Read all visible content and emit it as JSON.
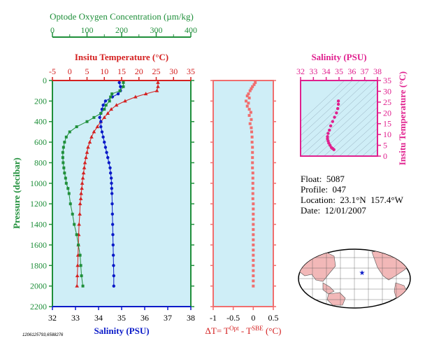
{
  "colors": {
    "oxygen": "#1f8f3a",
    "temperature": "#d42020",
    "salinity": "#0a1ac8",
    "delta": "#f06e6e",
    "ts": "#e0208e",
    "panel_bg": "#cfeef7",
    "map_land": "#f2b8b8",
    "map_ocean": "#ffffff"
  },
  "info": {
    "float_label": "Float:",
    "float_value": "5087",
    "profile_label": "Profile:",
    "profile_value": "047",
    "location_label": "Location:",
    "location_value": "23.1°N  157.4°W",
    "date_label": "Date:",
    "date_value": "12/01/2007"
  },
  "stamp": "1206125793,6588276",
  "chart_data": [
    {
      "type": "line",
      "panel": "main-profile",
      "ylabel": "Pressure (decibar)",
      "ylim": [
        2200,
        0
      ],
      "y_ticks": [
        0,
        200,
        400,
        600,
        800,
        1000,
        1200,
        1400,
        1600,
        1800,
        2000,
        2200
      ],
      "axes": {
        "oxygen": {
          "label": "Optode Oxygen Concentration (µm/kg)",
          "lim": [
            0,
            400
          ],
          "ticks": [
            0,
            100,
            200,
            300,
            400
          ]
        },
        "temperature": {
          "label": "Insitu Temperature (°C)",
          "lim": [
            -5,
            35
          ],
          "ticks": [
            -5,
            0,
            5,
            10,
            15,
            20,
            25,
            30,
            35
          ]
        },
        "salinity": {
          "label": "Salinity (PSU)",
          "lim": [
            32,
            38
          ],
          "ticks": [
            32,
            33,
            34,
            35,
            36,
            37,
            38
          ]
        }
      },
      "series": [
        {
          "key": "temperature",
          "marker": "triangle",
          "points": [
            [
              25.5,
              20
            ],
            [
              25.5,
              60
            ],
            [
              25.2,
              100
            ],
            [
              22,
              130
            ],
            [
              19,
              160
            ],
            [
              16,
              200
            ],
            [
              13.5,
              240
            ],
            [
              12,
              280
            ],
            [
              11,
              320
            ],
            [
              10,
              360
            ],
            [
              9,
              400
            ],
            [
              8,
              450
            ],
            [
              7,
              500
            ],
            [
              6.3,
              550
            ],
            [
              5.8,
              600
            ],
            [
              5.3,
              650
            ],
            [
              5,
              700
            ],
            [
              4.7,
              750
            ],
            [
              4.4,
              800
            ],
            [
              4.2,
              850
            ],
            [
              4,
              900
            ],
            [
              3.8,
              950
            ],
            [
              3.6,
              1000
            ],
            [
              3.5,
              1050
            ],
            [
              3.3,
              1100
            ],
            [
              3.2,
              1150
            ],
            [
              3,
              1200
            ],
            [
              2.9,
              1300
            ],
            [
              2.7,
              1400
            ],
            [
              2.6,
              1500
            ],
            [
              2.5,
              1600
            ],
            [
              2.4,
              1700
            ],
            [
              2.3,
              1800
            ],
            [
              2.2,
              1900
            ],
            [
              2.1,
              2000
            ]
          ]
        },
        {
          "key": "salinity",
          "marker": "circle",
          "points": [
            [
              34.9,
              20
            ],
            [
              34.95,
              60
            ],
            [
              34.95,
              100
            ],
            [
              34.85,
              130
            ],
            [
              34.6,
              160
            ],
            [
              34.3,
              200
            ],
            [
              34.2,
              240
            ],
            [
              34.15,
              280
            ],
            [
              34.1,
              320
            ],
            [
              34.05,
              360
            ],
            [
              34.1,
              400
            ],
            [
              34.1,
              450
            ],
            [
              34.15,
              500
            ],
            [
              34.2,
              550
            ],
            [
              34.25,
              600
            ],
            [
              34.3,
              650
            ],
            [
              34.35,
              700
            ],
            [
              34.4,
              750
            ],
            [
              34.45,
              800
            ],
            [
              34.5,
              850
            ],
            [
              34.52,
              900
            ],
            [
              34.55,
              950
            ],
            [
              34.56,
              1000
            ],
            [
              34.57,
              1050
            ],
            [
              34.58,
              1100
            ],
            [
              34.59,
              1200
            ],
            [
              34.6,
              1300
            ],
            [
              34.61,
              1400
            ],
            [
              34.62,
              1500
            ],
            [
              34.63,
              1600
            ],
            [
              34.64,
              1700
            ],
            [
              34.65,
              1800
            ],
            [
              34.66,
              1900
            ],
            [
              34.66,
              2000
            ]
          ]
        },
        {
          "key": "oxygen",
          "marker": "square",
          "points": [
            [
              205,
              20
            ],
            [
              205,
              60
            ],
            [
              195,
              100
            ],
            [
              172,
              130
            ],
            [
              168,
              160
            ],
            [
              165,
              200
            ],
            [
              155,
              240
            ],
            [
              150,
              280
            ],
            [
              140,
              320
            ],
            [
              120,
              360
            ],
            [
              100,
              400
            ],
            [
              70,
              450
            ],
            [
              50,
              500
            ],
            [
              40,
              550
            ],
            [
              35,
              600
            ],
            [
              32,
              650
            ],
            [
              30,
              700
            ],
            [
              30,
              750
            ],
            [
              31,
              800
            ],
            [
              33,
              850
            ],
            [
              35,
              900
            ],
            [
              38,
              950
            ],
            [
              40,
              1000
            ],
            [
              45,
              1050
            ],
            [
              48,
              1100
            ],
            [
              52,
              1200
            ],
            [
              58,
              1300
            ],
            [
              63,
              1400
            ],
            [
              70,
              1500
            ],
            [
              75,
              1600
            ],
            [
              80,
              1700
            ],
            [
              82,
              1800
            ],
            [
              84,
              1900
            ],
            [
              88,
              2000
            ]
          ]
        }
      ]
    },
    {
      "type": "scatter",
      "panel": "delta-temperature",
      "xlabel": "ΔT= T^Opt - T^SBE (°C)",
      "xlim": [
        -1.0,
        0.5
      ],
      "x_ticks": [
        -1.0,
        -0.5,
        0.0,
        0.5
      ],
      "ylim": [
        2200,
        0
      ],
      "values": [
        [
          0.05,
          20
        ],
        [
          0.02,
          40
        ],
        [
          -0.02,
          60
        ],
        [
          -0.05,
          80
        ],
        [
          -0.08,
          100
        ],
        [
          -0.12,
          130
        ],
        [
          -0.15,
          150
        ],
        [
          -0.1,
          170
        ],
        [
          -0.18,
          200
        ],
        [
          -0.12,
          220
        ],
        [
          -0.15,
          250
        ],
        [
          -0.1,
          280
        ],
        [
          -0.06,
          310
        ],
        [
          -0.1,
          340
        ],
        [
          -0.05,
          380
        ],
        [
          -0.08,
          420
        ],
        [
          -0.05,
          460
        ],
        [
          -0.04,
          500
        ],
        [
          -0.03,
          550
        ],
        [
          -0.03,
          600
        ],
        [
          -0.02,
          650
        ],
        [
          -0.02,
          700
        ],
        [
          -0.02,
          750
        ],
        [
          -0.02,
          800
        ],
        [
          -0.02,
          850
        ],
        [
          -0.01,
          900
        ],
        [
          -0.01,
          950
        ],
        [
          -0.01,
          1000
        ],
        [
          -0.01,
          1050
        ],
        [
          -0.01,
          1100
        ],
        [
          -0.01,
          1150
        ],
        [
          0,
          1200
        ],
        [
          0,
          1250
        ],
        [
          0,
          1300
        ],
        [
          0,
          1350
        ],
        [
          0,
          1400
        ],
        [
          0,
          1450
        ],
        [
          0,
          1500
        ],
        [
          0,
          1550
        ],
        [
          0,
          1600
        ],
        [
          0,
          1650
        ],
        [
          0,
          1700
        ],
        [
          0,
          1750
        ],
        [
          0,
          1800
        ],
        [
          0,
          1850
        ],
        [
          0,
          1900
        ],
        [
          0,
          1950
        ],
        [
          0,
          2000
        ]
      ]
    },
    {
      "type": "scatter",
      "panel": "ts-diagram",
      "xlabel": "Salinity (PSU)",
      "xlim": [
        32,
        38
      ],
      "x_ticks": [
        32,
        33,
        34,
        35,
        36,
        37,
        38
      ],
      "ylabel": "Insitu Temperature (°C)",
      "ylim": [
        0,
        35
      ],
      "y_ticks": [
        0,
        5,
        10,
        15,
        20,
        25,
        30,
        35
      ],
      "values": [
        [
          34.95,
          25.5
        ],
        [
          34.95,
          24
        ],
        [
          34.9,
          22
        ],
        [
          34.8,
          20
        ],
        [
          34.65,
          18
        ],
        [
          34.5,
          16
        ],
        [
          34.35,
          14
        ],
        [
          34.25,
          12
        ],
        [
          34.15,
          10.5
        ],
        [
          34.1,
          9
        ],
        [
          34.1,
          8
        ],
        [
          34.15,
          7
        ],
        [
          34.2,
          6
        ],
        [
          34.3,
          5
        ],
        [
          34.4,
          4
        ],
        [
          34.5,
          3.5
        ],
        [
          34.6,
          3
        ]
      ]
    }
  ]
}
